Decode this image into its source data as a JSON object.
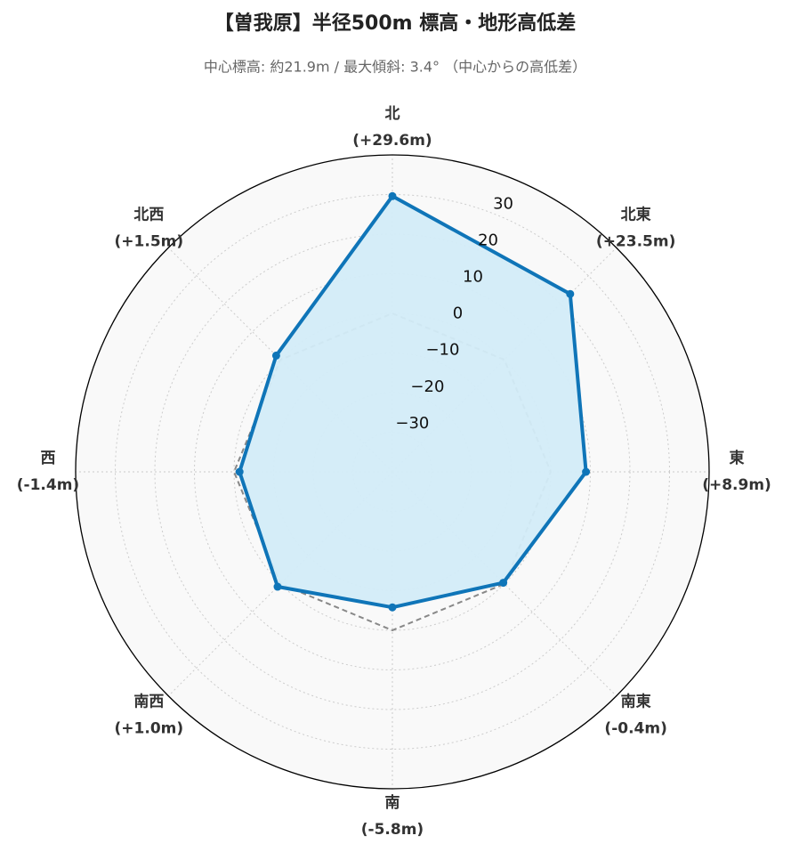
{
  "chart_data": {
    "type": "radar",
    "title": "【曽我原】半径500m 標高・地形高低差",
    "subtitle": "中心標高: 約21.9m / 最大傾斜: 3.4° （中心からの高低差）",
    "categories": [
      "北",
      "北東",
      "東",
      "南東",
      "南",
      "南西",
      "西",
      "北西"
    ],
    "values": [
      29.6,
      23.5,
      8.9,
      -0.4,
      -5.8,
      1.0,
      -1.4,
      1.5
    ],
    "value_labels": [
      "(+29.6m)",
      "(+23.5m)",
      "(+8.9m)",
      "(-0.4m)",
      "(-5.8m)",
      "(+1.0m)",
      "(-1.4m)",
      "(+1.5m)"
    ],
    "color": "#0f75b8",
    "fill_color": "#d3ecf8",
    "ylim": [
      -40,
      40
    ],
    "yticks": [
      {
        "value": -30,
        "label": "−30"
      },
      {
        "value": -20,
        "label": "−20"
      },
      {
        "value": -10,
        "label": "−10"
      },
      0,
      10,
      20,
      30
    ],
    "zero_line": true,
    "grid": true
  }
}
